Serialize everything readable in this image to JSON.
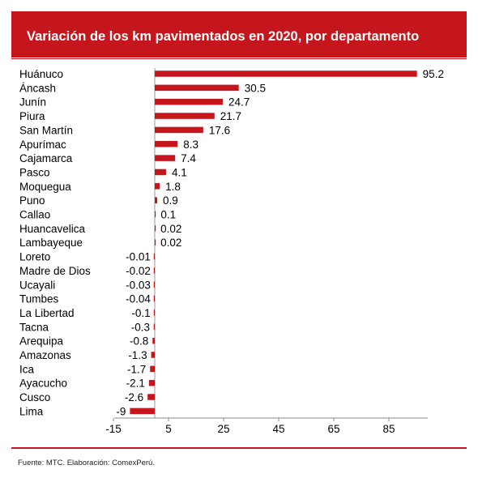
{
  "header": {
    "title": "Variación de los km pavimentados en 2020, por departamento"
  },
  "footer": {
    "source": "Fuente: MTC. Elaboración: ComexPerú."
  },
  "colors": {
    "bar": "#c4161c",
    "text": "#000000"
  },
  "chart_data": {
    "type": "bar",
    "orientation": "horizontal",
    "title": "Variación de los km pavimentados en 2020, por departamento",
    "categories": [
      "Huánuco",
      "Áncash",
      "Junín",
      "Piura",
      "San Martín",
      "Apurímac",
      "Cajamarca",
      "Pasco",
      "Moquegua",
      "Puno",
      "Callao",
      "Huancavelica",
      "Lambayeque",
      "Loreto",
      "Madre de Dios",
      "Ucayali",
      "Tumbes",
      "La Libertad",
      "Tacna",
      "Arequipa",
      "Amazonas",
      "Ica",
      "Ayacucho",
      "Cusco",
      "Lima"
    ],
    "values": [
      95.2,
      30.5,
      24.7,
      21.7,
      17.6,
      8.3,
      7.4,
      4.1,
      1.8,
      0.9,
      0.1,
      0.02,
      0.02,
      -0.01,
      -0.02,
      -0.03,
      -0.04,
      -0.1,
      -0.3,
      -0.8,
      -1.3,
      -1.7,
      -2.1,
      -2.6,
      -9
    ],
    "value_labels": [
      "95.2",
      "30.5",
      "24.7",
      "21.7",
      "17.6",
      "8.3",
      "7.4",
      "4.1",
      "1.8",
      "0.9",
      "0.1",
      "0.02",
      "0.02",
      "-0.01",
      "-0.02",
      "-0.03",
      "-0.04",
      "-0.1",
      "-0.3",
      "-0.8",
      "-1.3",
      "-1.7",
      "-2.1",
      "-2.6",
      "-9"
    ],
    "xticks": [
      -15,
      5,
      25,
      45,
      65,
      85
    ],
    "xlim": [
      -15,
      100
    ],
    "grid": false,
    "legend": "none"
  }
}
